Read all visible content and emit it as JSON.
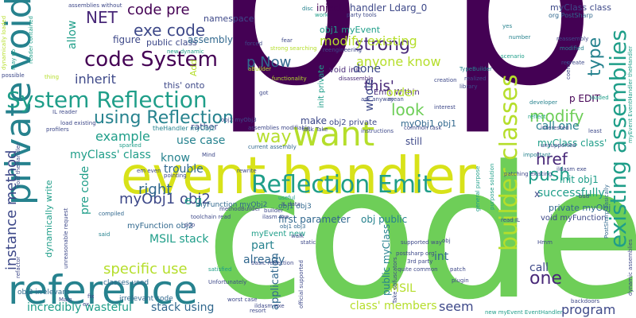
{
  "cloud": {
    "words": [
      {
        "id": "p-left",
        "text": "p"
      },
      {
        "id": "p-right",
        "text": "p"
      },
      {
        "id": "code-big",
        "text": "code"
      },
      {
        "id": "event-handler",
        "text": "event handler"
      },
      {
        "id": "reference",
        "text": "reference"
      },
      {
        "id": "private-void",
        "text": "private void"
      },
      {
        "id": "want",
        "text": "want"
      },
      {
        "id": "reflection-emit",
        "text": "Reflection Emit"
      },
      {
        "id": "system-reflection",
        "text": "System Reflection"
      },
      {
        "id": "code-system",
        "text": "code System"
      },
      {
        "id": "existing-assemblies",
        "text": "existing assemblies"
      },
      {
        "id": "builder-classes",
        "text": "builder classes"
      },
      {
        "id": "instance-method",
        "text": "instance method"
      },
      {
        "id": "using-reflection",
        "text": "using Reflection"
      },
      {
        "id": "way",
        "text": "way"
      },
      {
        "id": "code-pre",
        "text": "code pre"
      },
      {
        "id": "exe-code",
        "text": "exe code"
      },
      {
        "id": "net",
        "text": "NET"
      },
      {
        "id": "strong",
        "text": "strong"
      },
      {
        "id": "modify-existing",
        "text": "modify existing"
      },
      {
        "id": "anyone-know",
        "text": "anyone know"
      },
      {
        "id": "type",
        "text": "type"
      },
      {
        "id": "p-now",
        "text": "p Now"
      },
      {
        "id": "inject",
        "text": "inject"
      },
      {
        "id": "handler-ldarg",
        "text": "handler Ldarg_0"
      },
      {
        "id": "myclass-class",
        "text": "myClass class"
      },
      {
        "id": "org-postsharp",
        "text": "org PostSharp"
      },
      {
        "id": "this",
        "text": "this'"
      },
      {
        "id": "look",
        "text": "look"
      },
      {
        "id": "modify",
        "text": "modify"
      },
      {
        "id": "push",
        "text": "push"
      },
      {
        "id": "href",
        "text": "href"
      },
      {
        "id": "one",
        "text": "one"
      },
      {
        "id": "myobj1-obj2",
        "text": "myObj1 obj2"
      },
      {
        "id": "example",
        "text": "example"
      },
      {
        "id": "right",
        "text": "right"
      },
      {
        "id": "pre-code",
        "text": "pre code"
      },
      {
        "id": "specific-use",
        "text": "specific use"
      },
      {
        "id": "incredibly-wasteful",
        "text": "incredibly wasteful"
      },
      {
        "id": "stack-using",
        "text": "stack using"
      },
      {
        "id": "class-members",
        "text": "class' members"
      },
      {
        "id": "seem",
        "text": "seem"
      },
      {
        "id": "msil",
        "text": "MSIL"
      },
      {
        "id": "program",
        "text": "program"
      },
      {
        "id": "call",
        "text": "call"
      },
      {
        "id": "int",
        "text": "int"
      },
      {
        "id": "already",
        "text": "already"
      },
      {
        "id": "part",
        "text": "part"
      },
      {
        "id": "application",
        "text": "application"
      },
      {
        "id": "public-myclass",
        "text": "public myClass"
      },
      {
        "id": "e-g",
        "text": "e g"
      },
      {
        "id": "msil-stack",
        "text": "MSIL stack"
      },
      {
        "id": "myfunction-obj2",
        "text": "myFunction obj2"
      },
      {
        "id": "trouble",
        "text": "trouble"
      },
      {
        "id": "myclass-class-2",
        "text": "myClass' class"
      },
      {
        "id": "know",
        "text": "know"
      },
      {
        "id": "use-case",
        "text": "use case"
      },
      {
        "id": "inherit",
        "text": "inherit"
      },
      {
        "id": "allow",
        "text": "allow"
      },
      {
        "id": "figure",
        "text": "figure"
      },
      {
        "id": "public-class",
        "text": "public class"
      },
      {
        "id": "assembly",
        "text": "assembly"
      },
      {
        "id": "namespace",
        "text": "namespace"
      },
      {
        "id": "emit-within",
        "text": "Emit Within"
      },
      {
        "id": "void-init",
        "text": "void init"
      },
      {
        "id": "obj1-myevent",
        "text": "obj1 myEvent"
      },
      {
        "id": "done",
        "text": "done"
      },
      {
        "id": "order",
        "text": "order"
      },
      {
        "id": "whole",
        "text": "whole"
      },
      {
        "id": "make",
        "text": "make"
      },
      {
        "id": "still",
        "text": "still"
      },
      {
        "id": "obj2-private",
        "text": "obj2 private"
      },
      {
        "id": "myobj1-obj1",
        "text": "myObj1 obj1"
      },
      {
        "id": "call-one",
        "text": "call one"
      },
      {
        "id": "successfully",
        "text": "successfully"
      },
      {
        "id": "private-myobj",
        "text": "private myObj"
      },
      {
        "id": "init-obj1",
        "text": "init obj1"
      },
      {
        "id": "void-myfunction",
        "text": "void myFunction"
      },
      {
        "id": "myclass-class-3",
        "text": "myClass class'"
      },
      {
        "id": "p-edit",
        "text": "p EDIT"
      },
      {
        "id": "x",
        "text": "x"
      },
      {
        "id": "first-parameter",
        "text": "first parameter"
      },
      {
        "id": "obj-public",
        "text": "obj public"
      },
      {
        "id": "myevent-new",
        "text": "myEvent new"
      },
      {
        "id": "rather",
        "text": "rather"
      },
      {
        "id": "this-onto",
        "text": "this' onto"
      },
      {
        "id": "add",
        "text": "Add"
      },
      {
        "id": "dynamically-write",
        "text": "dynamically write"
      },
      {
        "id": "classes-used",
        "text": "classes used"
      },
      {
        "id": "obj2-irrelevant",
        "text": "obj2 irrelevant"
      },
      {
        "id": "irrelevant-code",
        "text": "irrelevant code"
      },
      {
        "id": "myfunction-myobj2",
        "text": "myFunction myObj2"
      },
      {
        "id": "obj1-obj3",
        "text": "obj1 obj3"
      },
      {
        "id": "reader-contained",
        "text": "reader contained"
      },
      {
        "id": "strong-searching",
        "text": "strong searching"
      },
      {
        "id": "assemblies-without",
        "text": "assemblies without"
      },
      {
        "id": "new-dynamic",
        "text": "new dynamic"
      },
      {
        "id": "disc",
        "text": "disc"
      },
      {
        "id": "work",
        "text": "work"
      },
      {
        "id": "party-tools",
        "text": "party tools"
      },
      {
        "id": "reengineering",
        "text": "reengineering"
      },
      {
        "id": "disassemble",
        "text": "disassemble"
      },
      {
        "id": "mean",
        "text": "mean"
      },
      {
        "id": "ask-anyway",
        "text": "ask anyway"
      },
      {
        "id": "typebuilder",
        "text": "TypeBuilder"
      },
      {
        "id": "library",
        "text": "library"
      },
      {
        "id": "realized",
        "text": "realized"
      },
      {
        "id": "creation",
        "text": "creation"
      },
      {
        "id": "interest",
        "text": "interest"
      },
      {
        "id": "reassembly",
        "text": "reassembly"
      },
      {
        "id": "modified",
        "text": "modified"
      },
      {
        "id": "recreate",
        "text": "recreate"
      },
      {
        "id": "scenario",
        "text": "scenario"
      },
      {
        "id": "coerce",
        "text": "coerce"
      },
      {
        "id": "developer",
        "text": "developer"
      },
      {
        "id": "reflect",
        "text": "reflect"
      },
      {
        "id": "loaded",
        "text": "loaded"
      },
      {
        "id": "interested",
        "text": "interested"
      },
      {
        "id": "least",
        "text": "least"
      },
      {
        "id": "unsupported",
        "text": "unsupported"
      },
      {
        "id": "important",
        "text": "important"
      },
      {
        "id": "ildasm-exe",
        "text": "ildasm exe"
      },
      {
        "id": "patching-existing",
        "text": "patching existing"
      },
      {
        "id": "purpose-solution",
        "text": "purpose solution"
      },
      {
        "id": "general-purpose",
        "text": "general purpose"
      },
      {
        "id": "hmm",
        "text": "Hmm"
      },
      {
        "id": "read-il",
        "text": "read IL"
      },
      {
        "id": "plugin",
        "text": "plugin"
      },
      {
        "id": "patch",
        "text": "patch"
      },
      {
        "id": "quite-common",
        "text": "quite common"
      },
      {
        "id": "3rd-party",
        "text": "3rd party"
      },
      {
        "id": "postsharp-org",
        "text": "postsharp org"
      },
      {
        "id": "supported-way",
        "text": "supported way"
      },
      {
        "id": "take-obfuscators",
        "text": "Take obfuscators"
      },
      {
        "id": "official-supported",
        "text": "official supported"
      },
      {
        "id": "ildasm-exe-2",
        "text": "ildasm exe"
      },
      {
        "id": "worst-case",
        "text": "worst case"
      },
      {
        "id": "resort",
        "text": "resort"
      },
      {
        "id": "unfortunately",
        "text": "Unfortunately"
      },
      {
        "id": "satisfied",
        "text": "satisfied"
      },
      {
        "id": "basic-reflection",
        "text": "basic reflection"
      },
      {
        "id": "backdoors",
        "text": "backdoors"
      },
      {
        "id": "postsharp-basically",
        "text": "PostSharp basically"
      },
      {
        "id": "new-myevent-eventhandler",
        "text": "new myEvent EventHandler"
      },
      {
        "id": "dynamic-assemblies",
        "text": "dynamic assemblies"
      },
      {
        "id": "myevent-eventhandler-thehandler",
        "text": "myEvent EventHandler theHandler"
      },
      {
        "id": "thehandler-myobj2",
        "text": "theHandler myObj2"
      },
      {
        "id": "load-existing",
        "text": "load existing"
      },
      {
        "id": "sparked",
        "text": "sparked"
      },
      {
        "id": "compiled",
        "text": "compiled"
      },
      {
        "id": "said",
        "text": "said"
      },
      {
        "id": "profilers",
        "text": "profilers"
      },
      {
        "id": "il-reader",
        "text": "IL reader"
      },
      {
        "id": "void-thehandler",
        "text": "void theHandler"
      },
      {
        "id": "refactor",
        "text": "refactor"
      },
      {
        "id": "dynamically-loaded",
        "text": "dynamically loaded"
      },
      {
        "id": "may-go",
        "text": "may go"
      },
      {
        "id": "possible",
        "text": "possible"
      },
      {
        "id": "thing",
        "text": "thing"
      },
      {
        "id": "unreasonable-request",
        "text": "unreasonable request"
      },
      {
        "id": "main",
        "text": "Main"
      },
      {
        "id": "fix",
        "text": "fix"
      },
      {
        "id": "ex",
        "text": "ex"
      },
      {
        "id": "current-assembly",
        "text": "current assembly"
      },
      {
        "id": "obj2-myobj3",
        "text": "obj2 myObj3"
      },
      {
        "id": "assemblies-modifiable",
        "text": "assemblies modifiable"
      },
      {
        "id": "task-take",
        "text": "task Take"
      },
      {
        "id": "instructions",
        "text": "instructions"
      },
      {
        "id": "common-task",
        "text": "common task"
      },
      {
        "id": "useful",
        "text": "useful"
      },
      {
        "id": "il-data",
        "text": "IL data"
      },
      {
        "id": "builder",
        "text": "builder"
      },
      {
        "id": "ilasm-exe",
        "text": "ilasm exe"
      },
      {
        "id": "walk",
        "text": "walk"
      },
      {
        "id": "static",
        "text": "static"
      },
      {
        "id": "obj1-obj3-2",
        "text": "obj1 obj3"
      },
      {
        "id": "toolchain-read",
        "text": "toolchain read"
      },
      {
        "id": "methodbuilder",
        "text": "methodBuilder"
      },
      {
        "id": "pop",
        "text": "pop"
      },
      {
        "id": "rewrite",
        "text": "rewrite"
      },
      {
        "id": "mind",
        "text": "Mind"
      },
      {
        "id": "em-even",
        "text": "em even"
      },
      {
        "id": "pointing",
        "text": "pointing"
      },
      {
        "id": "fear",
        "text": "fear"
      },
      {
        "id": "forced",
        "text": "forced"
      },
      {
        "id": "functionality",
        "text": "functionality"
      },
      {
        "id": "got",
        "text": "got"
      },
      {
        "id": "abuilder",
        "text": "aBuilder"
      },
      {
        "id": "init-private",
        "text": "init private"
      },
      {
        "id": "number",
        "text": "number"
      },
      {
        "id": "yes",
        "text": "yes"
      },
      {
        "id": "bad",
        "text": "bad"
      },
      {
        "id": "obj",
        "text": "obj"
      }
    ]
  }
}
